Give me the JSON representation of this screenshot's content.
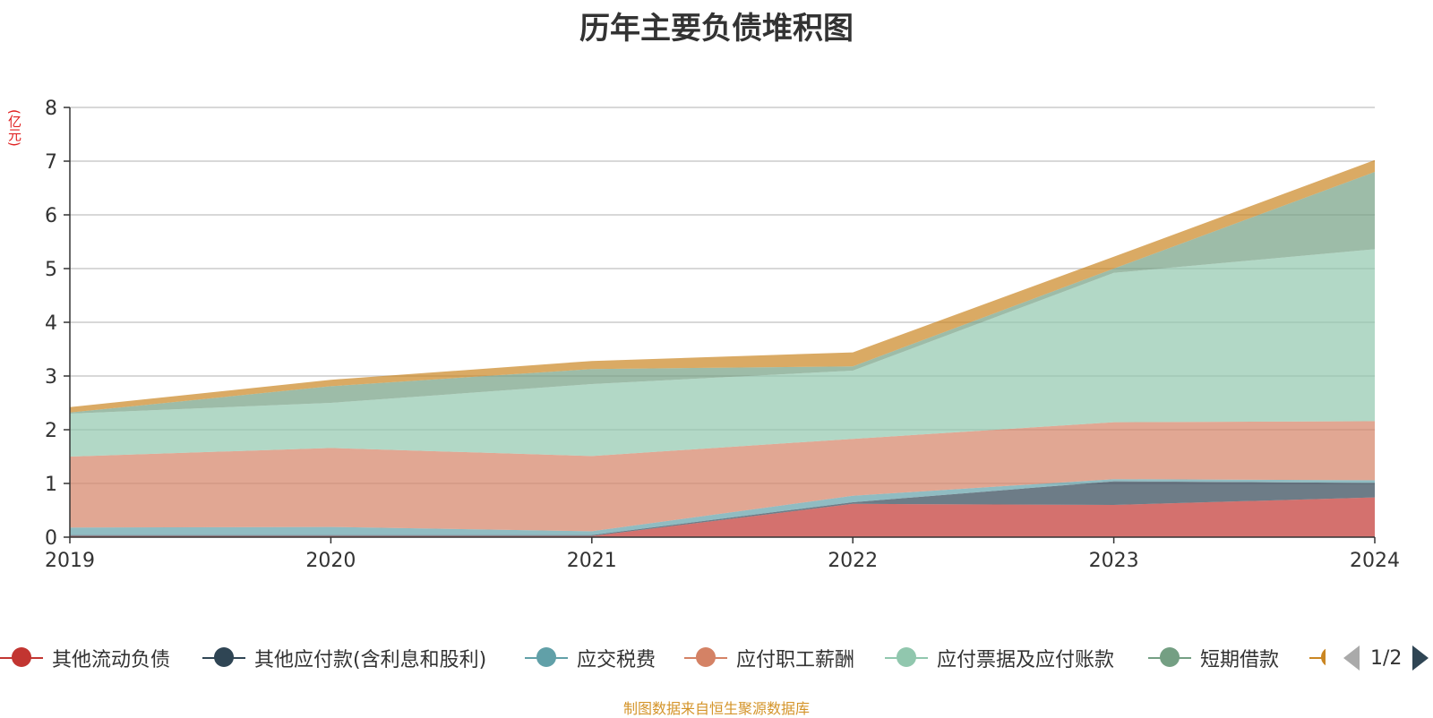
{
  "colors": {
    "title": "#333333",
    "unit": "#e02020",
    "footer": "#d4942a",
    "grid": "#cccccc",
    "axis": "#333333"
  },
  "chart_data": {
    "type": "area",
    "stacked": true,
    "title": "历年主要负债堆积图",
    "ylabel": "(亿元)",
    "xlabel": "",
    "categories": [
      "2019",
      "2020",
      "2021",
      "2022",
      "2023",
      "2024"
    ],
    "ylim": [
      0,
      8
    ],
    "yticks": [
      0,
      1,
      2,
      3,
      4,
      5,
      6,
      7,
      8
    ],
    "grid": true,
    "legend_position": "bottom",
    "series": [
      {
        "name": "其他流动负债",
        "color": "#c23531",
        "values": [
          0.02,
          0.02,
          0.02,
          0.62,
          0.6,
          0.74
        ]
      },
      {
        "name": "其他应付款(含利息和股利)",
        "color": "#2f4554",
        "values": [
          0.02,
          0.02,
          0.02,
          0.03,
          0.44,
          0.27
        ]
      },
      {
        "name": "应交税费",
        "color": "#61a0a8",
        "values": [
          0.14,
          0.15,
          0.07,
          0.12,
          0.04,
          0.05
        ]
      },
      {
        "name": "应付职工薪酬",
        "color": "#d48265",
        "values": [
          1.32,
          1.47,
          1.4,
          1.06,
          1.06,
          1.1
        ]
      },
      {
        "name": "应付票据及应付账款",
        "color": "#91c7ae",
        "values": [
          0.8,
          0.84,
          1.34,
          1.27,
          2.78,
          3.2
        ]
      },
      {
        "name": "短期借款",
        "color": "#749f83",
        "values": [
          0.02,
          0.31,
          0.28,
          0.08,
          0.08,
          1.44
        ]
      },
      {
        "name": "",
        "color": "#ca8622",
        "values": [
          0.1,
          0.12,
          0.15,
          0.26,
          0.22,
          0.22
        ]
      }
    ]
  },
  "legend": {
    "items": [
      {
        "label": "其他流动负债",
        "color": "#c23531"
      },
      {
        "label": "其他应付款(含利息和股利)",
        "color": "#2f4554"
      },
      {
        "label": "应交税费",
        "color": "#61a0a8"
      },
      {
        "label": "应付职工薪酬",
        "color": "#d48265"
      },
      {
        "label": "应付票据及应付账款",
        "color": "#91c7ae"
      },
      {
        "label": "短期借款",
        "color": "#749f83"
      }
    ],
    "page_indicator": "1/2"
  },
  "footer": {
    "source": "制图数据来自恒生聚源数据库"
  }
}
